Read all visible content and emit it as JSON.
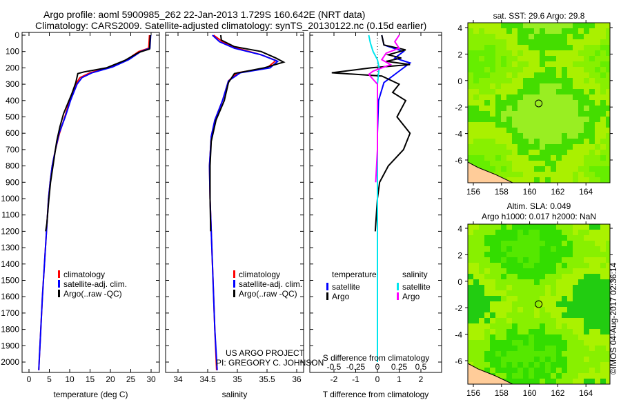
{
  "title": {
    "line1": "Argo profile: aoml 5900985_262 22-Jan-2013 1.729S 160.642E (NRT data)",
    "line2": "Climatology: CARS2009. Satellite-adjusted climatology: synTS_20130122.nc (0.15d earlier)"
  },
  "colors": {
    "clim": "#ff0000",
    "sat": "#0000ff",
    "argo": "#000000",
    "sat_s": "#00e5ee",
    "argo_s": "#ff00ff"
  },
  "credits": {
    "project": "US ARGO PROJECT",
    "pi": "PI: GREGORY C. JOHNSON",
    "stamp": "©IMOS 04-Aug-2017 02:36:14"
  },
  "chart_data": [
    {
      "type": "line",
      "id": "temperature",
      "xlabel": "temperature (deg C)",
      "ylabel": "",
      "xlim": [
        -2,
        32
      ],
      "ylim": [
        2050,
        0
      ],
      "xticks": [
        0,
        5,
        10,
        15,
        20,
        25,
        30
      ],
      "yticks": [
        0,
        100,
        200,
        300,
        400,
        500,
        600,
        700,
        800,
        900,
        1000,
        1100,
        1200,
        1300,
        1400,
        1500,
        1600,
        1700,
        1800,
        1900,
        2000
      ],
      "legend": [
        "climatology",
        "satellite-adj. clim.",
        "Argo(..raw -QC)"
      ],
      "series": [
        {
          "name": "climatology",
          "color": "#ff0000",
          "points": [
            [
              29.6,
              0
            ],
            [
              29.4,
              80
            ],
            [
              27,
              100
            ],
            [
              24,
              150
            ],
            [
              20,
              195
            ],
            [
              15,
              230
            ],
            [
              12.5,
              260
            ],
            [
              11.5,
              300
            ],
            [
              10,
              400
            ],
            [
              8.8,
              500
            ],
            [
              7.5,
              600
            ],
            [
              6.5,
              700
            ],
            [
              5.7,
              800
            ],
            [
              5.2,
              900
            ],
            [
              4.8,
              1000
            ],
            [
              4.3,
              1200
            ],
            [
              3.8,
              1400
            ],
            [
              3.3,
              1600
            ],
            [
              2.9,
              1800
            ],
            [
              2.5,
              2000
            ],
            [
              2.4,
              2050
            ]
          ]
        },
        {
          "name": "satellite-adj. clim.",
          "color": "#0000ff",
          "points": [
            [
              29.9,
              0
            ],
            [
              29.7,
              80
            ],
            [
              27.5,
              100
            ],
            [
              24.5,
              150
            ],
            [
              20.5,
              195
            ],
            [
              15.5,
              230
            ],
            [
              13,
              260
            ],
            [
              11.8,
              300
            ],
            [
              10.2,
              400
            ],
            [
              8.9,
              500
            ],
            [
              7.4,
              600
            ],
            [
              6.5,
              700
            ],
            [
              5.7,
              800
            ],
            [
              5.2,
              900
            ],
            [
              4.8,
              1000
            ],
            [
              4.3,
              1200
            ],
            [
              3.8,
              1400
            ],
            [
              3.3,
              1600
            ],
            [
              2.9,
              1800
            ],
            [
              2.5,
              2000
            ],
            [
              2.4,
              2050
            ]
          ]
        },
        {
          "name": "Argo(..raw -QC)",
          "color": "#000000",
          "points": [
            [
              29.8,
              0
            ],
            [
              29.6,
              85
            ],
            [
              27,
              105
            ],
            [
              23.5,
              155
            ],
            [
              19,
              200
            ],
            [
              13.5,
              225
            ],
            [
              12,
              235
            ],
            [
              11.5,
              290
            ],
            [
              10.5,
              360
            ],
            [
              9.5,
              420
            ],
            [
              8.5,
              480
            ],
            [
              7.6,
              560
            ],
            [
              6.8,
              650
            ],
            [
              5.9,
              800
            ],
            [
              5.3,
              900
            ],
            [
              4.9,
              1000
            ],
            [
              4.4,
              1150
            ],
            [
              4.1,
              1200
            ]
          ]
        }
      ]
    },
    {
      "type": "line",
      "id": "salinity",
      "xlabel": "salinity",
      "xlim": [
        33.6,
        36.2
      ],
      "ylim": [
        2050,
        0
      ],
      "xticks": [
        34,
        34.5,
        35,
        35.5,
        36
      ],
      "legend": [
        "climatology",
        "satellite-adj. clim.",
        "Argo(..raw -QC)"
      ],
      "series": [
        {
          "name": "climatology",
          "color": "#ff0000",
          "points": [
            [
              34.6,
              0
            ],
            [
              34.75,
              40
            ],
            [
              35.0,
              80
            ],
            [
              35.4,
              120
            ],
            [
              35.65,
              155
            ],
            [
              35.5,
              200
            ],
            [
              35.0,
              230
            ],
            [
              34.85,
              280
            ],
            [
              34.75,
              400
            ],
            [
              34.62,
              520
            ],
            [
              34.56,
              620
            ],
            [
              34.53,
              800
            ],
            [
              34.54,
              1000
            ],
            [
              34.58,
              1400
            ],
            [
              34.62,
              1800
            ],
            [
              34.65,
              2050
            ]
          ]
        },
        {
          "name": "satellite-adj. clim.",
          "color": "#0000ff",
          "points": [
            [
              34.58,
              0
            ],
            [
              34.7,
              40
            ],
            [
              34.95,
              80
            ],
            [
              35.4,
              120
            ],
            [
              35.68,
              160
            ],
            [
              35.55,
              200
            ],
            [
              35.05,
              230
            ],
            [
              34.85,
              280
            ],
            [
              34.75,
              400
            ],
            [
              34.62,
              520
            ],
            [
              34.56,
              620
            ],
            [
              34.53,
              800
            ],
            [
              34.54,
              1000
            ],
            [
              34.58,
              1400
            ],
            [
              34.62,
              1800
            ],
            [
              34.66,
              2050
            ]
          ]
        },
        {
          "name": "Argo(..raw -QC)",
          "color": "#000000",
          "points": [
            [
              34.72,
              0
            ],
            [
              34.73,
              30
            ],
            [
              34.95,
              70
            ],
            [
              35.4,
              100
            ],
            [
              35.65,
              140
            ],
            [
              35.78,
              165
            ],
            [
              35.45,
              200
            ],
            [
              34.95,
              235
            ],
            [
              34.85,
              290
            ],
            [
              34.78,
              400
            ],
            [
              34.64,
              520
            ],
            [
              34.56,
              650
            ],
            [
              34.54,
              800
            ],
            [
              34.54,
              1000
            ],
            [
              34.55,
              1200
            ]
          ]
        }
      ]
    },
    {
      "type": "line",
      "id": "differences",
      "xlabel": "T difference from climatology",
      "x2label": "S difference from climatology",
      "xlim": [
        -3,
        3
      ],
      "x2lim": [
        -0.75,
        0.75
      ],
      "ylim": [
        2050,
        0
      ],
      "xticks": [
        -2,
        -1,
        0,
        1,
        2
      ],
      "x2ticks": [
        -0.5,
        -0.25,
        0,
        0.25,
        0.5
      ],
      "legend_headers": [
        "temperature",
        "salinity"
      ],
      "legend": [
        "satellite",
        "Argo",
        "satellite",
        "Argo"
      ],
      "series": [
        {
          "name": "T satellite",
          "axis": "T",
          "color": "#0000ff",
          "points": [
            [
              0.2,
              0
            ],
            [
              0.3,
              60
            ],
            [
              1.2,
              100
            ],
            [
              0.8,
              140
            ],
            [
              1.5,
              170
            ],
            [
              0.9,
              230
            ],
            [
              0.3,
              290
            ],
            [
              0.05,
              400
            ],
            [
              0,
              600
            ],
            [
              0,
              2000
            ]
          ]
        },
        {
          "name": "T Argo",
          "axis": "T",
          "color": "#000000",
          "points": [
            [
              0.2,
              0
            ],
            [
              0.3,
              60
            ],
            [
              1.3,
              90
            ],
            [
              0.5,
              120
            ],
            [
              1.1,
              140
            ],
            [
              0.4,
              160
            ],
            [
              1.5,
              180
            ],
            [
              -0.3,
              200
            ],
            [
              -2.1,
              230
            ],
            [
              0.2,
              250
            ],
            [
              1.0,
              300
            ],
            [
              0.7,
              350
            ],
            [
              1.3,
              400
            ],
            [
              0.9,
              500
            ],
            [
              1.5,
              600
            ],
            [
              1.2,
              700
            ],
            [
              0.5,
              800
            ],
            [
              0.1,
              900
            ],
            [
              0,
              1000
            ],
            [
              -0.1,
              1200
            ]
          ]
        },
        {
          "name": "S satellite",
          "axis": "S",
          "color": "#00e5ee",
          "points": [
            [
              -0.1,
              0
            ],
            [
              -0.08,
              50
            ],
            [
              -0.05,
              100
            ],
            [
              0,
              150
            ],
            [
              0.02,
              200
            ],
            [
              0.01,
              250
            ],
            [
              0,
              300
            ],
            [
              0,
              2000
            ]
          ]
        },
        {
          "name": "S Argo",
          "axis": "S",
          "color": "#ff00ff",
          "points": [
            [
              0.25,
              0
            ],
            [
              0.2,
              40
            ],
            [
              0.25,
              80
            ],
            [
              0.1,
              110
            ],
            [
              0.05,
              150
            ],
            [
              0.15,
              180
            ],
            [
              -0.05,
              220
            ],
            [
              -0.1,
              240
            ],
            [
              0,
              300
            ],
            [
              0,
              700
            ],
            [
              -0.02,
              900
            ]
          ]
        }
      ]
    },
    {
      "type": "heatmap",
      "id": "sst-map",
      "title": "sat. SST: 29.6 Argo: 29.8",
      "xticks": [
        156,
        158,
        160,
        162,
        164
      ],
      "yticks": [
        4,
        2,
        0,
        -2,
        -4,
        -6
      ],
      "xlim": [
        155.6,
        165.8
      ],
      "ylim": [
        -7.6,
        4.3
      ],
      "marker": [
        160.642,
        -1.729
      ]
    },
    {
      "type": "heatmap",
      "id": "sla-map",
      "title": "Altim. SLA: 0.049",
      "subtitle": "Argo h1000: 0.017 h2000: NaN",
      "xticks": [
        156,
        158,
        160,
        162,
        164
      ],
      "yticks": [
        4,
        2,
        0,
        -2,
        -4,
        -6
      ],
      "xlim": [
        155.6,
        165.8
      ],
      "ylim": [
        -7.6,
        4.3
      ],
      "marker": [
        160.642,
        -1.729
      ]
    }
  ]
}
